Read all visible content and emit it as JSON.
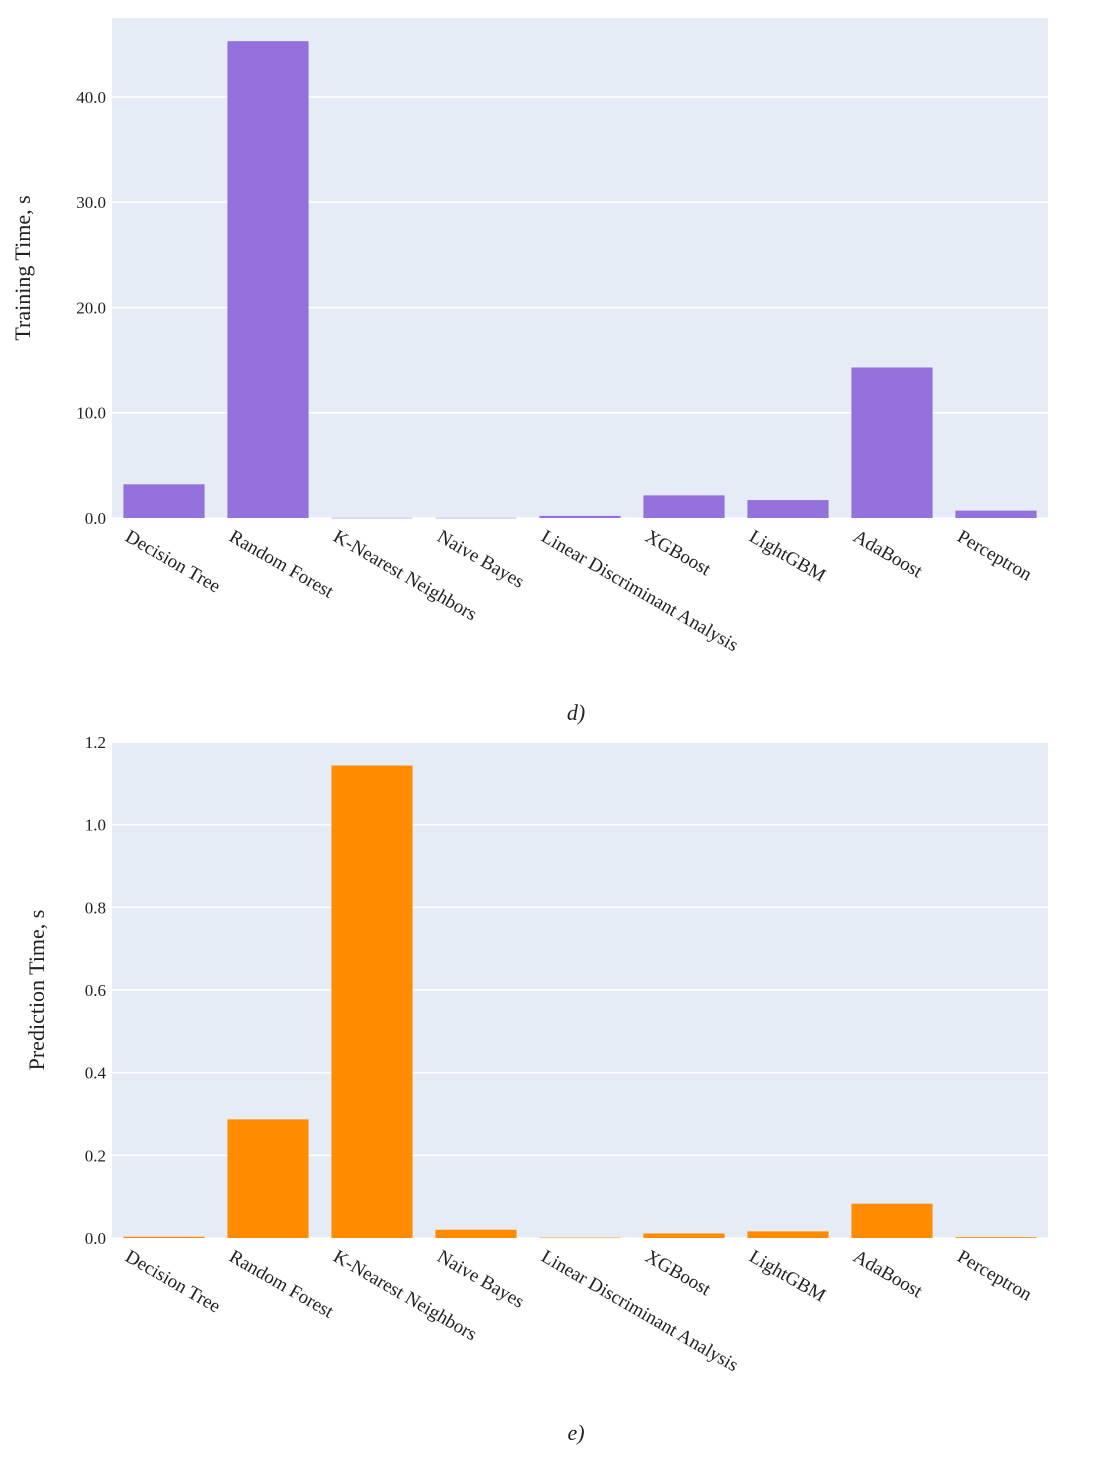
{
  "chart_data": [
    {
      "type": "bar",
      "panel": "d",
      "caption": "d)",
      "title": "",
      "xlabel": "",
      "ylabel": "Training Time, s",
      "categories": [
        "Decision Tree",
        "Random Forest",
        "K-Nearest Neighbors",
        "Naive Bayes",
        "Linear Discriminant Analysis",
        "XGBoost",
        "LightGBM",
        "AdaBoost",
        "Perceptron"
      ],
      "values": [
        3.2,
        45.3,
        0.02,
        0.02,
        0.2,
        2.15,
        1.7,
        14.3,
        0.7
      ],
      "ylim": [
        0,
        47.5
      ],
      "yticks": [
        0,
        10,
        20,
        30,
        40
      ],
      "ytick_labels": [
        "0.0",
        "10.0",
        "20.0",
        "30.0",
        "40.0"
      ],
      "bar_color": "#9370DB",
      "plot_bg": "#E5ECF6",
      "grid": true
    },
    {
      "type": "bar",
      "panel": "e",
      "caption": "e)",
      "title": "",
      "xlabel": "",
      "ylabel": "Prediction Time, s",
      "categories": [
        "Decision Tree",
        "Random Forest",
        "K-Nearest Neighbors",
        "Naive Bayes",
        "Linear Discriminant Analysis",
        "XGBoost",
        "LightGBM",
        "AdaBoost",
        "Perceptron"
      ],
      "values": [
        0.003,
        0.287,
        1.143,
        0.02,
        0.001,
        0.011,
        0.016,
        0.083,
        0.002
      ],
      "ylim": [
        0,
        1.2
      ],
      "yticks": [
        0,
        0.2,
        0.4,
        0.6,
        0.8,
        1.0,
        1.2
      ],
      "ytick_labels": [
        "0.0",
        "0.2",
        "0.4",
        "0.6",
        "0.8",
        "1.0",
        "1.2"
      ],
      "bar_color": "#FF8C00",
      "plot_bg": "#E5ECF6",
      "grid": true
    }
  ]
}
